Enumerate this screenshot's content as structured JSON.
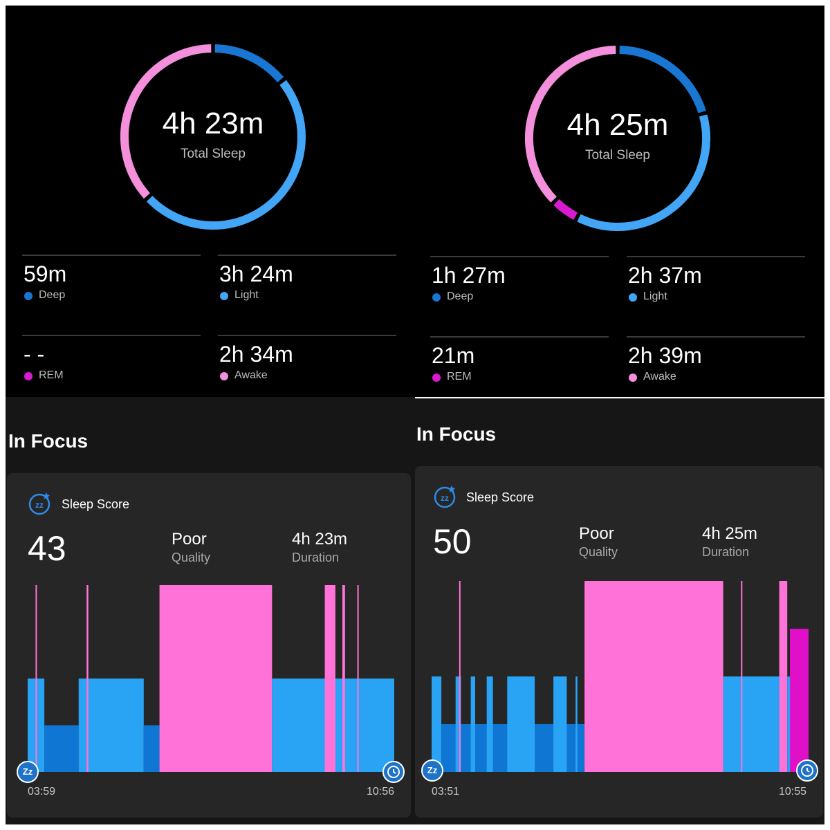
{
  "colors": {
    "deep": "#1976d2",
    "light": "#42a5f5",
    "rem": "#d81bd0",
    "awake": "#f48fdc",
    "chart_light": "#29a3f4",
    "chart_deep": "#0f76d4",
    "chart_awake": "#ff73d8",
    "chart_rem": "#e010c8"
  },
  "panels": [
    {
      "total_sleep": "4h 23m",
      "total_sleep_label": "Total Sleep",
      "ring_segments": [
        {
          "stage": "deep",
          "minutes": 59
        },
        {
          "stage": "light",
          "minutes": 204
        },
        {
          "stage": "rem",
          "minutes": 0
        },
        {
          "stage": "awake",
          "minutes": 154
        }
      ],
      "stats": [
        {
          "value": "59m",
          "label": "Deep",
          "stage": "deep"
        },
        {
          "value": "3h 24m",
          "label": "Light",
          "stage": "light"
        },
        {
          "value": "- -",
          "label": "REM",
          "stage": "rem"
        },
        {
          "value": "2h 34m",
          "label": "Awake",
          "stage": "awake"
        }
      ],
      "focus_title": "In Focus",
      "score_label": "Sleep Score",
      "score": "43",
      "quality": "Poor",
      "quality_label": "Quality",
      "duration": "4h 23m",
      "duration_label": "Duration",
      "badge_start": "Zz",
      "start_time": "03:59",
      "end_time": "10:56",
      "chart_data": {
        "type": "sleep-stage-timeline",
        "start": "03:59",
        "end": "10:56",
        "total_minutes": 417,
        "stage_levels": {
          "deep": 1,
          "light": 2,
          "rem": 3,
          "awake": 4
        },
        "segments": [
          {
            "stage": "light",
            "start_min": 0,
            "end_min": 19
          },
          {
            "stage": "deep",
            "start_min": 19,
            "end_min": 58
          },
          {
            "stage": "light",
            "start_min": 58,
            "end_min": 132
          },
          {
            "stage": "deep",
            "start_min": 132,
            "end_min": 150
          },
          {
            "stage": "awake",
            "start_min": 150,
            "end_min": 278
          },
          {
            "stage": "light",
            "start_min": 278,
            "end_min": 417
          },
          {
            "stage": "awake",
            "start_min": 9,
            "end_min": 10.5
          },
          {
            "stage": "awake",
            "start_min": 67,
            "end_min": 69
          },
          {
            "stage": "awake",
            "start_min": 338,
            "end_min": 350
          },
          {
            "stage": "awake",
            "start_min": 358,
            "end_min": 361
          },
          {
            "stage": "awake",
            "start_min": 375,
            "end_min": 376
          }
        ]
      }
    },
    {
      "total_sleep": "4h 25m",
      "total_sleep_label": "Total Sleep",
      "ring_segments": [
        {
          "stage": "deep",
          "minutes": 87
        },
        {
          "stage": "light",
          "minutes": 157
        },
        {
          "stage": "rem",
          "minutes": 21
        },
        {
          "stage": "awake",
          "minutes": 159
        }
      ],
      "stats": [
        {
          "value": "1h 27m",
          "label": "Deep",
          "stage": "deep"
        },
        {
          "value": "2h 37m",
          "label": "Light",
          "stage": "light"
        },
        {
          "value": "21m",
          "label": "REM",
          "stage": "rem"
        },
        {
          "value": "2h 39m",
          "label": "Awake",
          "stage": "awake"
        }
      ],
      "focus_title": "In Focus",
      "score_label": "Sleep Score",
      "score": "50",
      "quality": "Poor",
      "quality_label": "Quality",
      "duration": "4h 25m",
      "duration_label": "Duration",
      "badge_start": "Zz",
      "start_time": "03:51",
      "end_time": "10:55",
      "chart_data": {
        "type": "sleep-stage-timeline",
        "start": "03:51",
        "end": "10:55",
        "total_minutes": 424,
        "stage_levels": {
          "deep": 1,
          "light": 2,
          "rem": 3,
          "awake": 4
        },
        "segments": [
          {
            "stage": "light",
            "start_min": 0,
            "end_min": 11
          },
          {
            "stage": "deep",
            "start_min": 11,
            "end_min": 172
          },
          {
            "stage": "light",
            "start_min": 27,
            "end_min": 33
          },
          {
            "stage": "light",
            "start_min": 44,
            "end_min": 49
          },
          {
            "stage": "light",
            "start_min": 62,
            "end_min": 69
          },
          {
            "stage": "light",
            "start_min": 85,
            "end_min": 116
          },
          {
            "stage": "light",
            "start_min": 137,
            "end_min": 152
          },
          {
            "stage": "light",
            "start_min": 162,
            "end_min": 164
          },
          {
            "stage": "awake",
            "start_min": 172,
            "end_min": 328
          },
          {
            "stage": "light",
            "start_min": 328,
            "end_min": 391
          },
          {
            "stage": "awake",
            "start_min": 391,
            "end_min": 400
          },
          {
            "stage": "rem",
            "start_min": 403,
            "end_min": 424
          },
          {
            "stage": "awake",
            "start_min": 31,
            "end_min": 32
          },
          {
            "stage": "awake",
            "start_min": 348,
            "end_min": 349.5
          },
          {
            "stage": "light",
            "start_min": 400,
            "end_min": 403
          }
        ]
      }
    }
  ]
}
